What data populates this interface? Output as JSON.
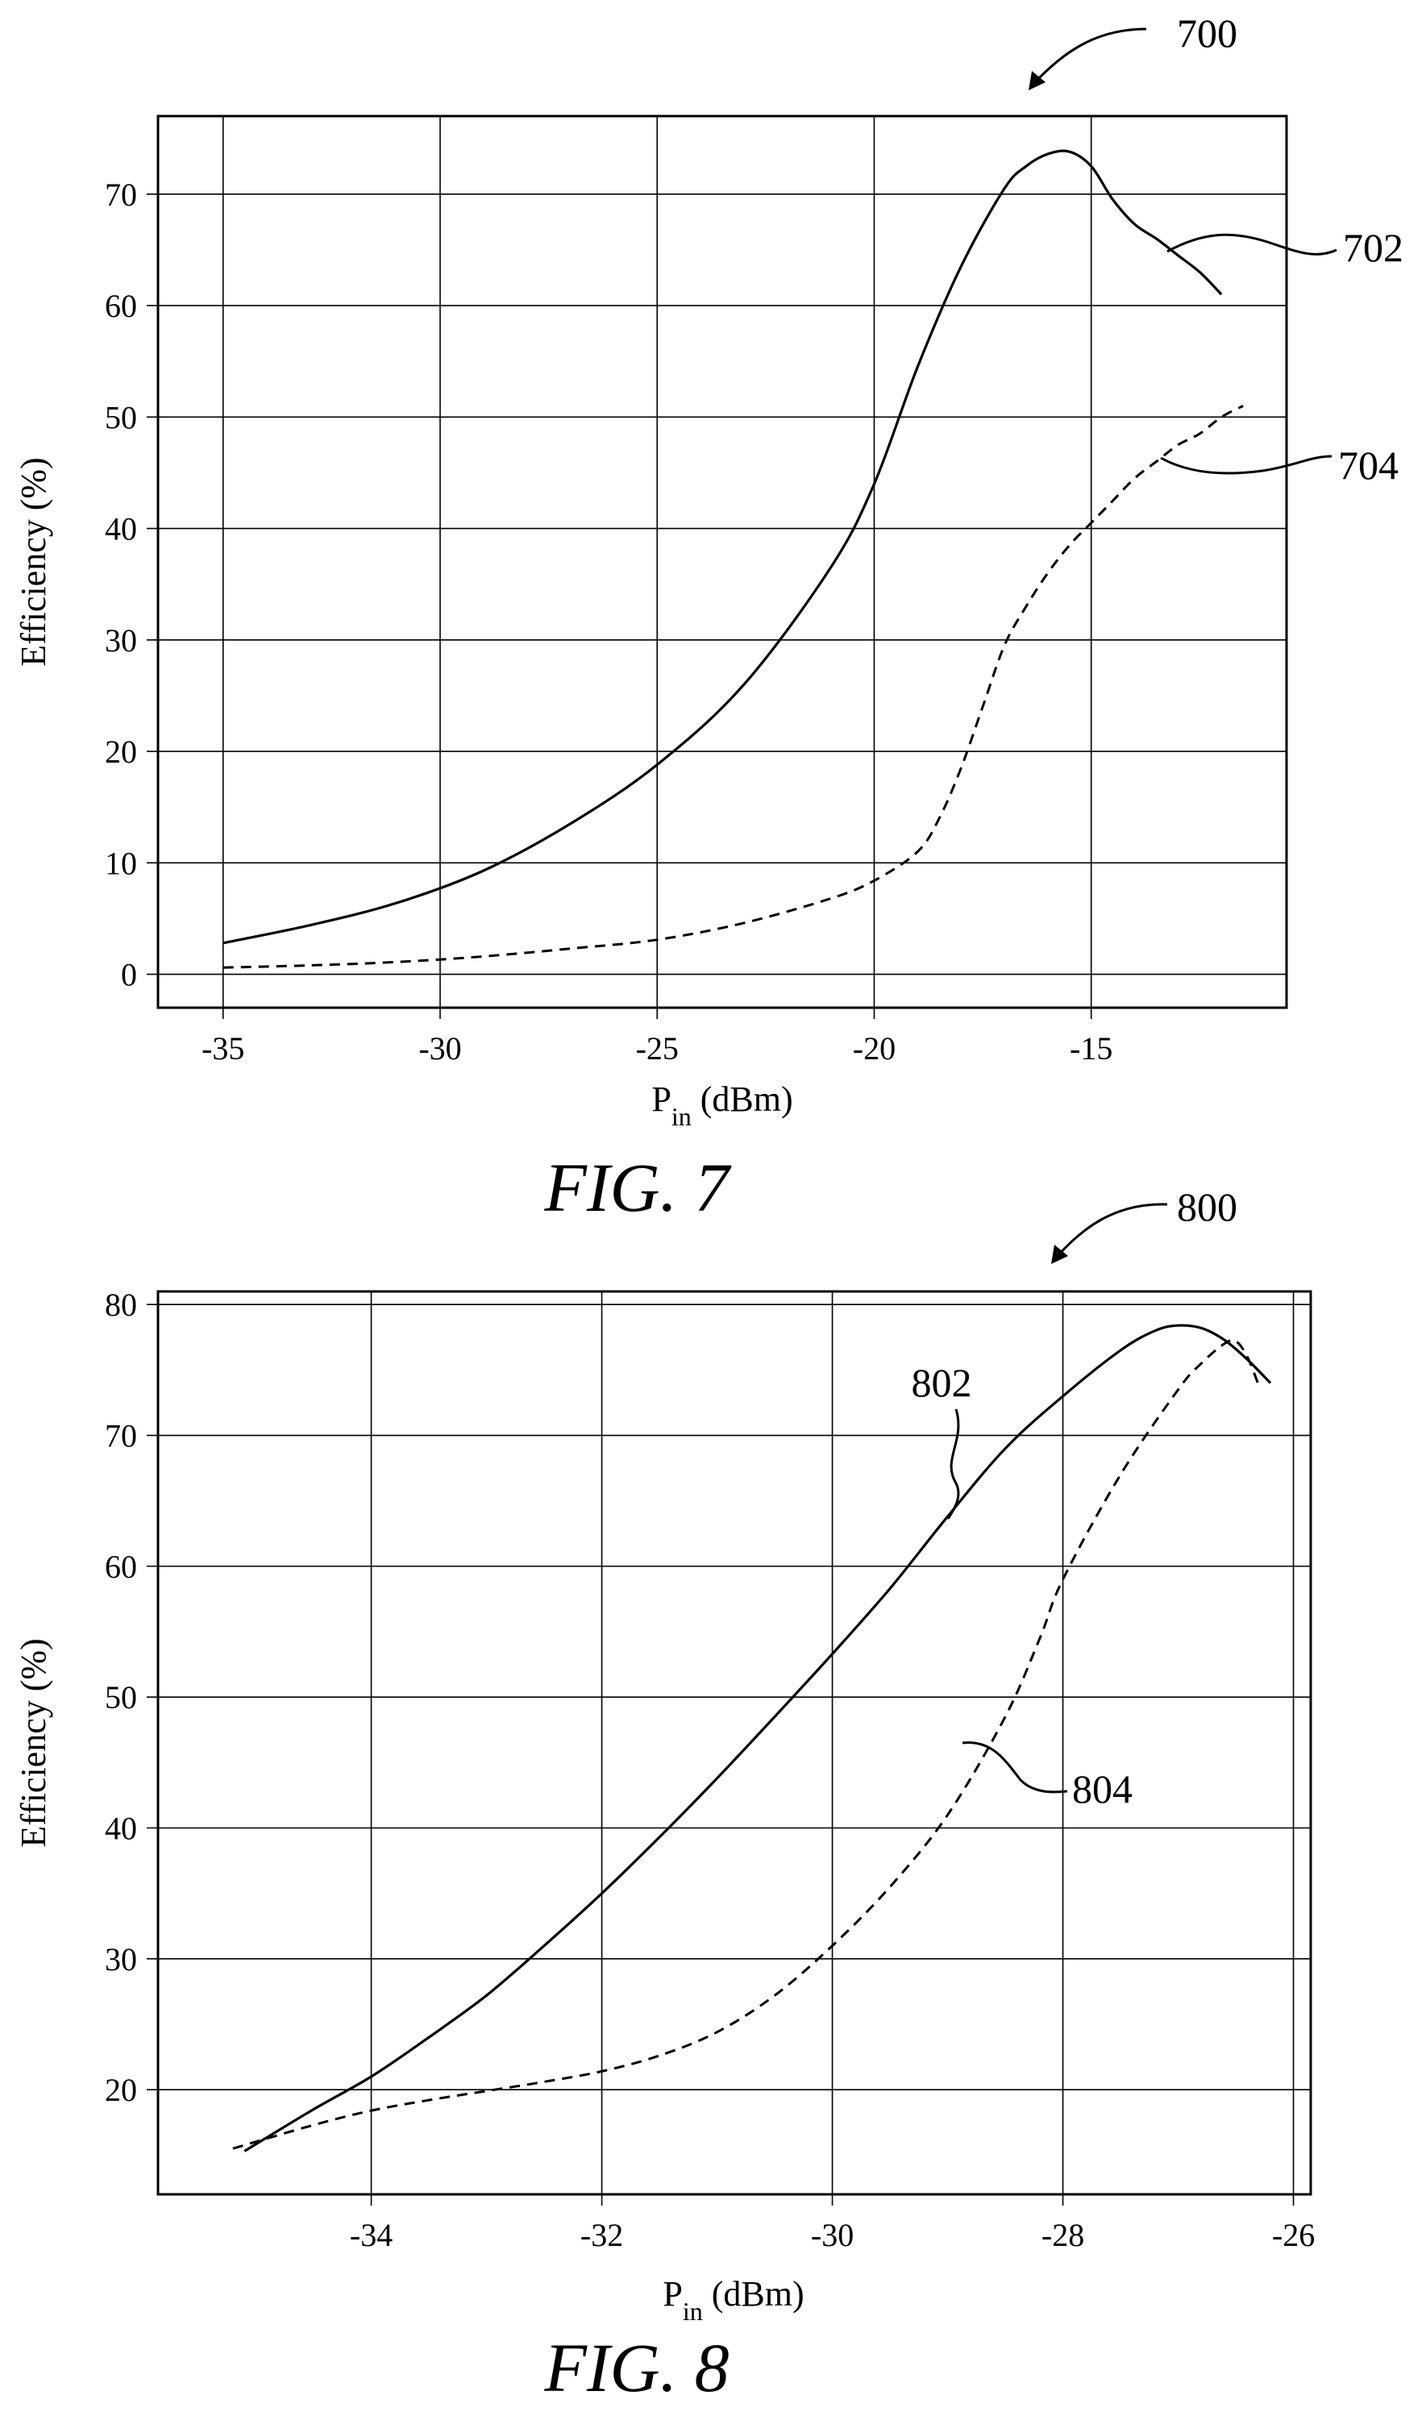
{
  "chart_data": [
    {
      "type": "line",
      "figure_number": "700",
      "caption": "FIG. 7",
      "xlabel_main": "P",
      "xlabel_sub": "in",
      "xlabel_unit": " (dBm)",
      "ylabel": "Efficiency (%)",
      "xlim": [
        -36.5,
        -10.5
      ],
      "ylim": [
        -3,
        77
      ],
      "xticks": [
        -35,
        -30,
        -25,
        -20,
        -15
      ],
      "xtick_labels": [
        "-35",
        "-30",
        "-25",
        "-20",
        "-15"
      ],
      "yticks": [
        0,
        10,
        20,
        30,
        40,
        50,
        60,
        70
      ],
      "ytick_labels": [
        "0",
        "10",
        "20",
        "30",
        "40",
        "50",
        "60",
        "70"
      ],
      "grid": true,
      "series": [
        {
          "ref_label": "702",
          "style": "solid",
          "x": [
            -35,
            -33,
            -31,
            -29,
            -27,
            -25,
            -23,
            -21,
            -20,
            -19,
            -18,
            -17,
            -16.5,
            -16,
            -15.5,
            -15,
            -14.5,
            -14,
            -13.5,
            -13,
            -12.5,
            -12
          ],
          "y": [
            2.8,
            4.4,
            6.4,
            9.3,
            13.5,
            18.8,
            26,
            36.5,
            44,
            54.5,
            63.5,
            70.5,
            72.5,
            73.6,
            73.8,
            72.5,
            69.5,
            67.3,
            66,
            64.5,
            63,
            61
          ]
        },
        {
          "ref_label": "704",
          "style": "dashed",
          "x": [
            -35,
            -33,
            -31,
            -29,
            -27,
            -25,
            -23,
            -21,
            -20,
            -19,
            -18.5,
            -18,
            -17.5,
            -17,
            -16.5,
            -16,
            -15.5,
            -15,
            -14.5,
            -14,
            -13.5,
            -13,
            -12.5,
            -12,
            -11.5
          ],
          "y": [
            0.6,
            0.8,
            1.1,
            1.6,
            2.3,
            3.1,
            4.6,
            6.8,
            8.4,
            11,
            14,
            18.5,
            24,
            29.5,
            33,
            36,
            38.5,
            40.5,
            42.5,
            44.5,
            46,
            47.5,
            48.5,
            50,
            51
          ]
        }
      ]
    },
    {
      "type": "line",
      "figure_number": "800",
      "caption": "FIG. 8",
      "xlabel_main": "P",
      "xlabel_sub": "in",
      "xlabel_unit": " (dBm)",
      "ylabel": "Efficiency (%)",
      "xlim": [
        -35.85,
        -25.85
      ],
      "ylim": [
        12,
        81
      ],
      "xticks": [
        -34,
        -32,
        -30,
        -28,
        -26
      ],
      "xtick_labels": [
        "-34",
        "-32",
        "-30",
        "-28",
        "-26"
      ],
      "yticks": [
        20,
        30,
        40,
        50,
        60,
        70,
        80
      ],
      "ytick_labels": [
        "20",
        "30",
        "40",
        "50",
        "60",
        "70",
        "80"
      ],
      "grid": true,
      "series": [
        {
          "ref_label": "802",
          "style": "solid",
          "x": [
            -35.1,
            -34.5,
            -34,
            -33.5,
            -33,
            -32.5,
            -32,
            -31.5,
            -31,
            -30.5,
            -30,
            -29.5,
            -29,
            -28.5,
            -28,
            -27.5,
            -27.2,
            -27,
            -26.8,
            -26.6,
            -26.4,
            -26.2
          ],
          "y": [
            15.3,
            18.5,
            21,
            24,
            27.2,
            31,
            35,
            39.3,
            43.8,
            48.5,
            53.3,
            58.3,
            63.8,
            69,
            73,
            76.5,
            78,
            78.4,
            78.2,
            77.3,
            75.8,
            74
          ]
        },
        {
          "ref_label": "804",
          "style": "dashed",
          "x": [
            -35.2,
            -34.5,
            -34,
            -33.5,
            -33,
            -32.5,
            -32,
            -31.5,
            -31,
            -30.5,
            -30,
            -29.5,
            -29,
            -28.5,
            -28.2,
            -28,
            -27.5,
            -27,
            -26.8,
            -26.6,
            -26.5,
            -26.4,
            -26.3
          ],
          "y": [
            15.5,
            17.3,
            18.4,
            19.2,
            19.9,
            20.6,
            21.4,
            22.6,
            24.4,
            27.2,
            31,
            35.5,
            41,
            48.5,
            54.5,
            59,
            67,
            73.5,
            75.5,
            77,
            77.2,
            76,
            73.8
          ]
        }
      ]
    }
  ]
}
